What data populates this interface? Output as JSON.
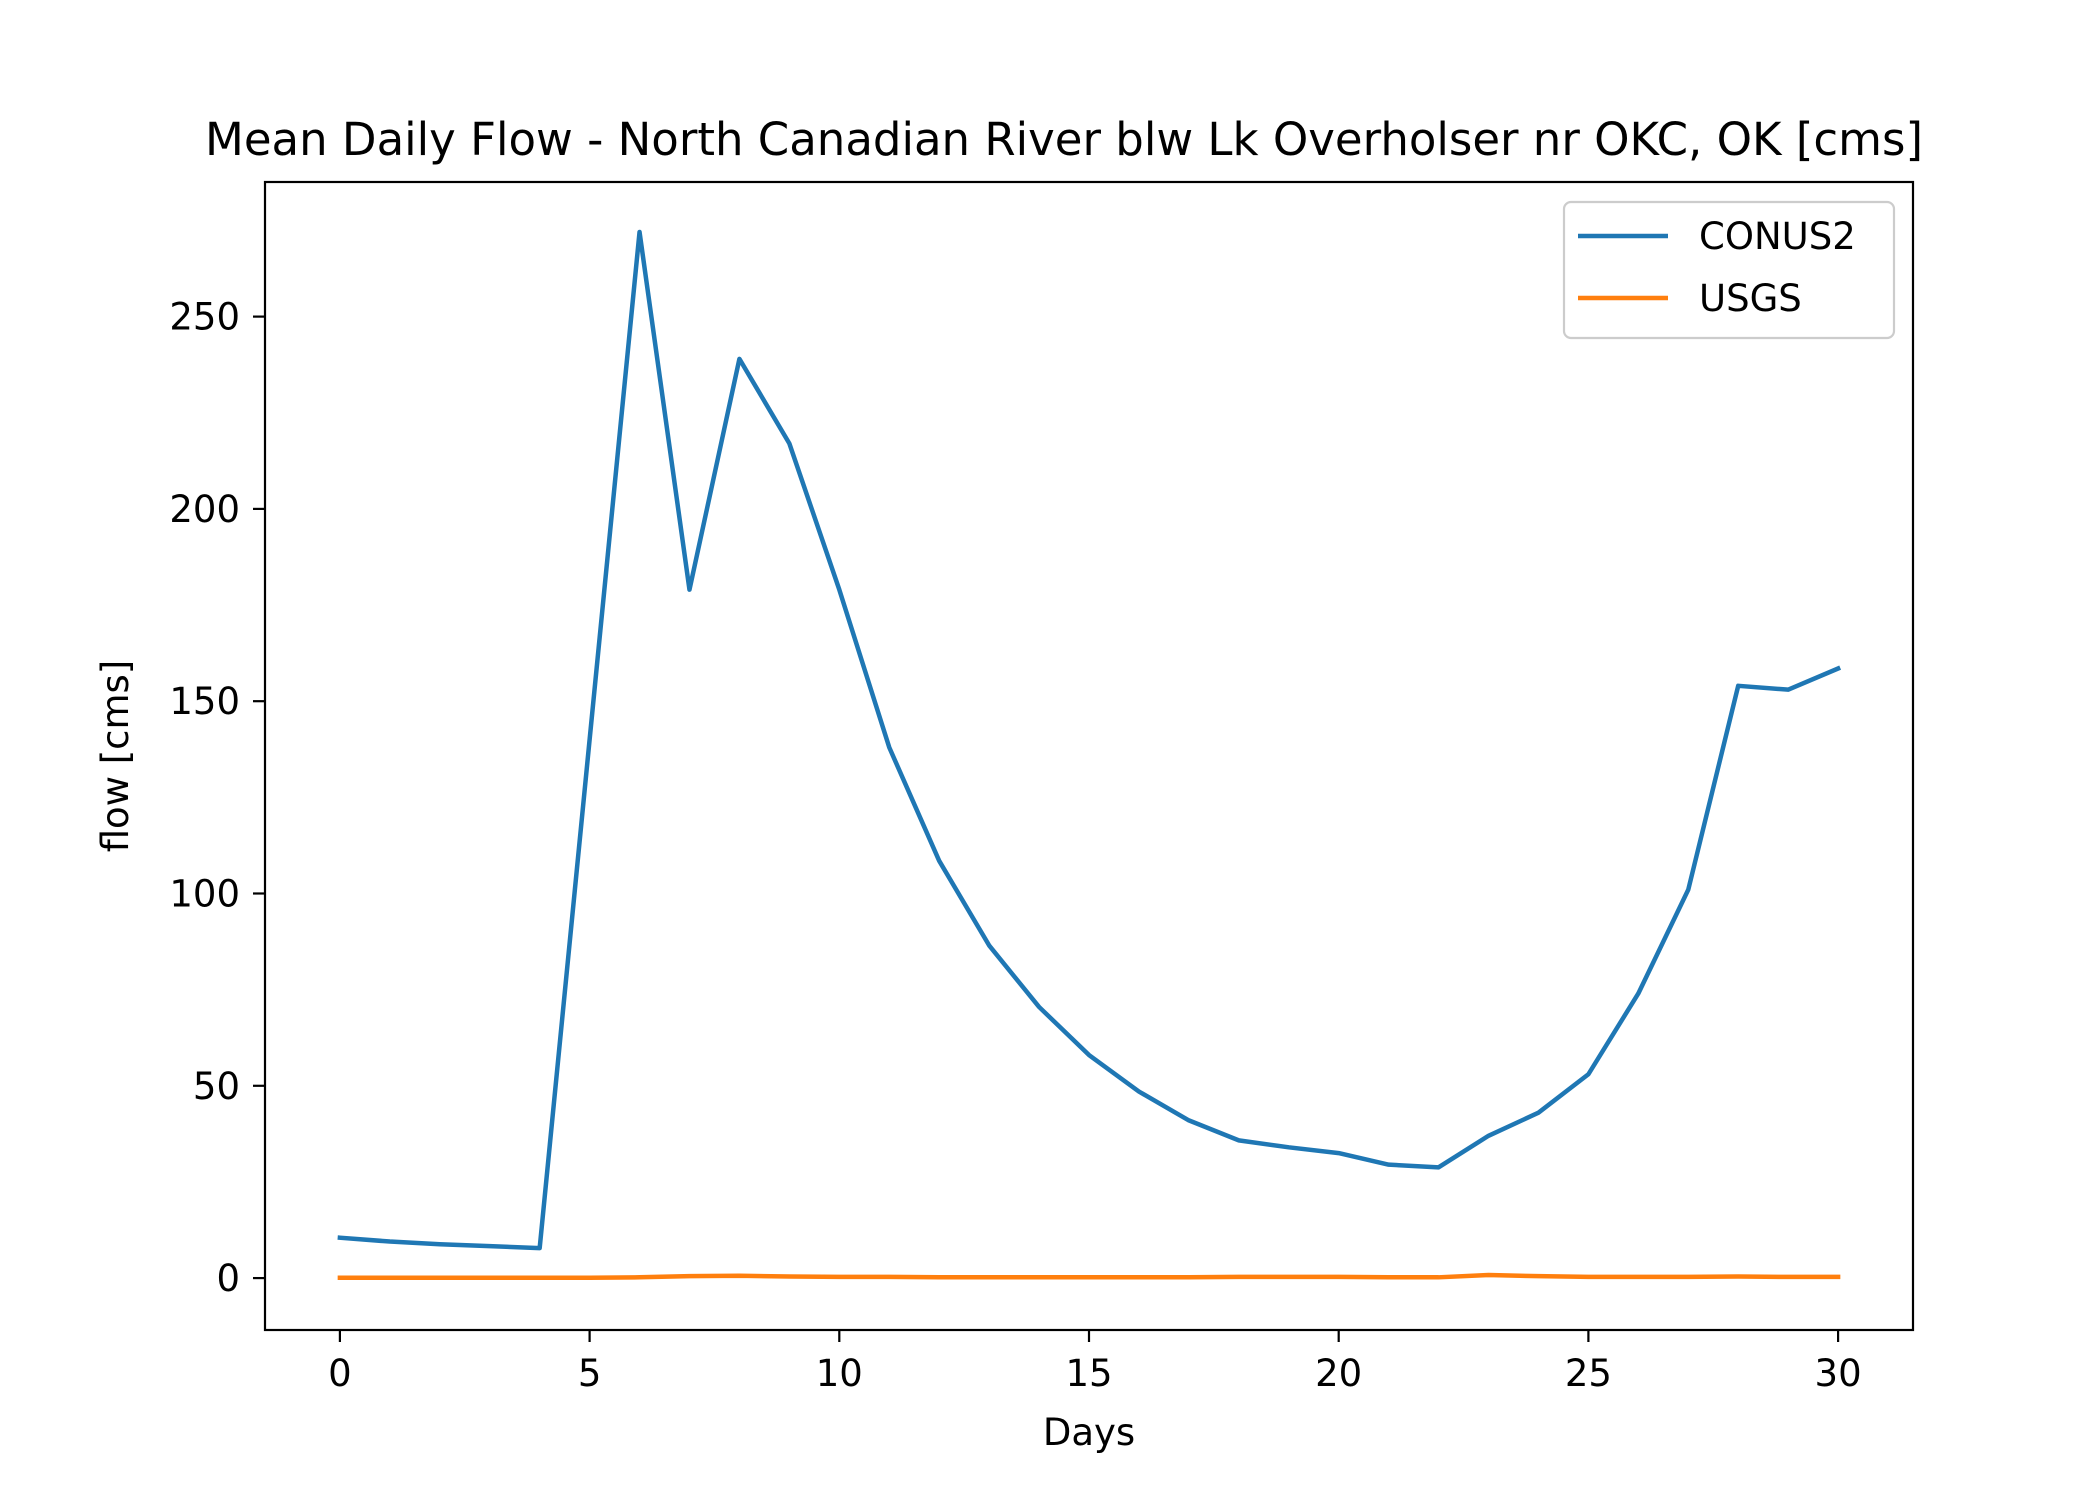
{
  "chart_data": {
    "type": "line",
    "title": "Mean Daily Flow - North Canadian River blw Lk Overholser nr OKC, OK [cms]",
    "xlabel": "Days",
    "ylabel": "flow [cms]",
    "xlim": [
      -1.5,
      31.5
    ],
    "ylim": [
      -13.5,
      285
    ],
    "xticks": [
      0,
      5,
      10,
      15,
      20,
      25,
      30
    ],
    "yticks": [
      0,
      50,
      100,
      150,
      200,
      250
    ],
    "grid": false,
    "legend": "top-right",
    "x": [
      0,
      1,
      2,
      3,
      4,
      5,
      6,
      7,
      8,
      9,
      10,
      11,
      12,
      13,
      14,
      15,
      16,
      17,
      18,
      19,
      20,
      21,
      22,
      23,
      24,
      25,
      26,
      27,
      28,
      29,
      30
    ],
    "series": [
      {
        "name": "CONUS2",
        "color": "#1f77b4",
        "values": [
          10.5,
          9.5,
          8.8,
          8.3,
          7.8,
          140,
          272,
          179,
          239,
          217,
          179,
          138,
          108.5,
          86.5,
          70.5,
          58,
          48.5,
          41,
          35.8,
          34,
          32.5,
          29.5,
          28.8,
          37,
          43,
          53,
          74,
          101,
          154,
          153,
          158.5
        ]
      },
      {
        "name": "USGS",
        "color": "#ff7f0e",
        "values": [
          0.1,
          0.1,
          0.1,
          0.1,
          0.1,
          0.1,
          0.2,
          0.5,
          0.6,
          0.4,
          0.3,
          0.3,
          0.2,
          0.2,
          0.2,
          0.2,
          0.2,
          0.2,
          0.3,
          0.3,
          0.3,
          0.2,
          0.2,
          0.8,
          0.5,
          0.3,
          0.3,
          0.3,
          0.4,
          0.3,
          0.3
        ]
      }
    ]
  }
}
